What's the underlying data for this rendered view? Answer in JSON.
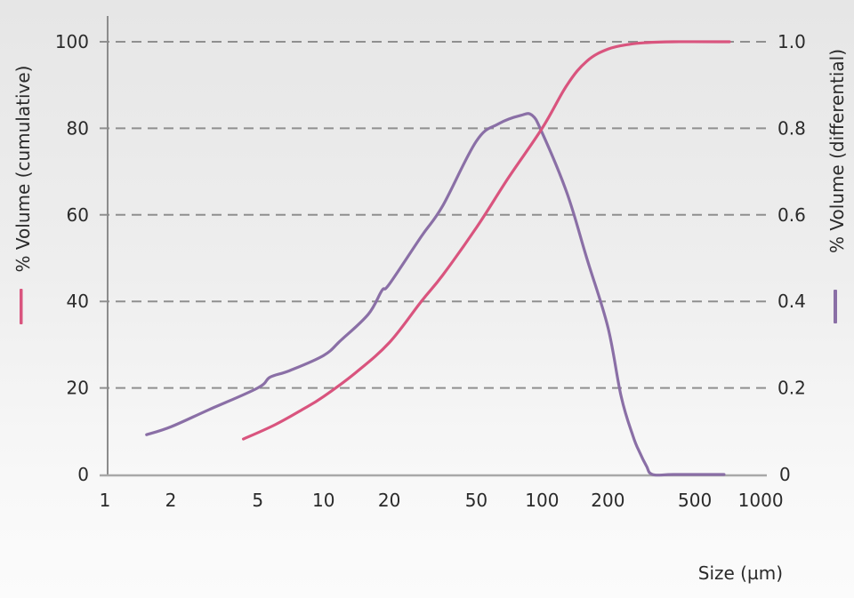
{
  "chart_data": {
    "type": "line",
    "title": "",
    "xlabel": "Size (µm)",
    "ylabel": "% Volume (cumulative)",
    "y2label": "% Volume (differential)",
    "x_scale": "log",
    "xlim": [
      1,
      1000
    ],
    "ylim": [
      0,
      100
    ],
    "y2lim": [
      0,
      1.0
    ],
    "grid": "horizontal-dashed",
    "x_ticks": [
      1,
      2,
      5,
      10,
      20,
      50,
      100,
      200,
      500,
      1000
    ],
    "x_tick_labels": [
      "1",
      "2",
      "5",
      "10",
      "20",
      "50",
      "100",
      "200",
      "500",
      "1000"
    ],
    "y_ticks": [
      0,
      20,
      40,
      60,
      80,
      100
    ],
    "y_tick_labels": [
      "0",
      "20",
      "40",
      "60",
      "80",
      "100"
    ],
    "y2_ticks": [
      0,
      0.2,
      0.4,
      0.6,
      0.8,
      1.0
    ],
    "y2_tick_labels": [
      "0",
      "0.2",
      "0.4",
      "0.6",
      "0.8",
      "1.0"
    ],
    "legend": "axis-title color markers (pink bar beside left title, purple bar beside right title)",
    "series": [
      {
        "name": "% Volume (cumulative)",
        "axis": "left",
        "color": "#d9547e",
        "x": [
          4.3,
          6,
          8,
          10,
          14,
          20,
          28,
          35,
          50,
          70,
          100,
          130,
          160,
          200,
          250,
          300,
          400,
          720
        ],
        "y": [
          8.2,
          11.5,
          15,
          18,
          23.5,
          30.5,
          40,
          46,
          57,
          68.5,
          80,
          90,
          95.5,
          98.3,
          99.4,
          99.8,
          100,
          100
        ]
      },
      {
        "name": "% Volume (differential)",
        "axis": "right",
        "color": "#8a6fa6",
        "x": [
          1.55,
          2,
          3,
          5,
          5.7,
          7,
          10,
          12,
          16,
          18.5,
          20,
          28,
          35,
          50,
          63,
          80,
          90,
          100,
          130,
          160,
          200,
          230,
          260,
          280,
          300,
          320,
          400,
          680
        ],
        "y": [
          0.092,
          0.11,
          0.15,
          0.2,
          0.225,
          0.24,
          0.275,
          0.31,
          0.37,
          0.425,
          0.44,
          0.55,
          0.62,
          0.77,
          0.81,
          0.83,
          0.83,
          0.79,
          0.65,
          0.5,
          0.34,
          0.18,
          0.09,
          0.05,
          0.02,
          0.0,
          0.0,
          0.0
        ]
      }
    ]
  },
  "legend_markers": {
    "left_color": "#d9547e",
    "right_color": "#8a6fa6"
  },
  "colors": {
    "axis": "#8c8c8c",
    "grid": "#8f8f8f",
    "text": "#2a2a2a"
  }
}
